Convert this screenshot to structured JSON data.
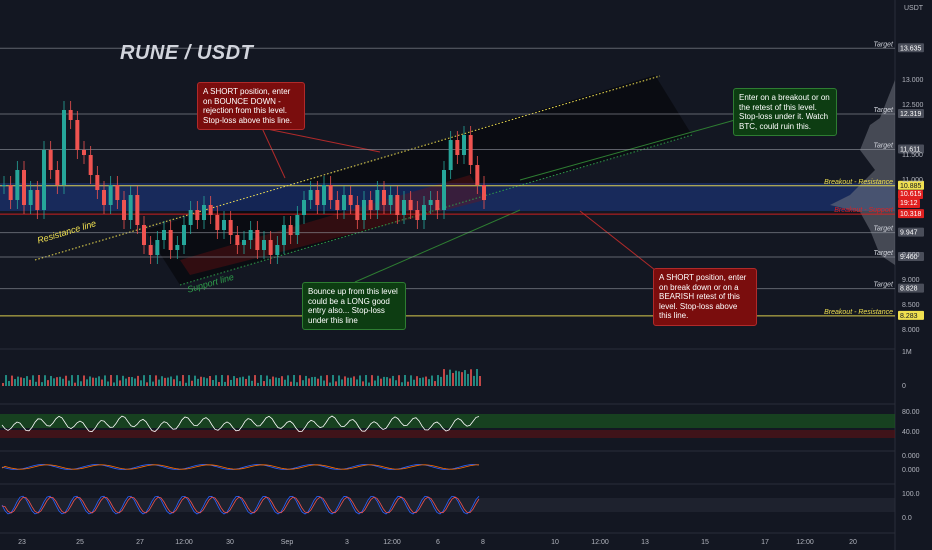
{
  "chart_data": {
    "type": "candlestick",
    "title": "RUNE / USDT",
    "currency": "USDT",
    "y_ticks": [
      "13.000",
      "12.500",
      "11.500",
      "11.000",
      "9.500",
      "9.000",
      "8.500",
      "8.000"
    ],
    "x_ticks": [
      "23",
      "25",
      "27",
      "12:00",
      "30",
      "Sep",
      "3",
      "12:00",
      "6",
      "8",
      "10",
      "12:00",
      "13",
      "15",
      "17",
      "12:00",
      "20"
    ],
    "levels": [
      {
        "label": "Target",
        "value": "13.635",
        "color": "#9598a1",
        "kind": "target"
      },
      {
        "label": "Target",
        "value": "12.319",
        "color": "#9598a1",
        "kind": "target"
      },
      {
        "label": "Target",
        "value": "11.611",
        "color": "#9598a1",
        "kind": "target"
      },
      {
        "label": "Breakout - Resistance",
        "value": "10.885",
        "color": "#f0e050",
        "kind": "breakout"
      },
      {
        "label": "Breakout - Support",
        "value": "10.318",
        "color": "#e02020",
        "kind": "support"
      },
      {
        "label": "Target",
        "value": "9.947",
        "color": "#9598a1",
        "kind": "target"
      },
      {
        "label": "Target",
        "value": "9.460",
        "color": "#9598a1",
        "kind": "target"
      },
      {
        "label": "Target",
        "value": "8.828",
        "color": "#9598a1",
        "kind": "target"
      },
      {
        "label": "Breakout - Resistance",
        "value": "8.283",
        "color": "#f0e050",
        "kind": "breakout"
      }
    ],
    "last_price": "10.615",
    "countdown": "19:12",
    "channel_labels": {
      "resistance": "Resistance line",
      "support": "Support line"
    },
    "volume_ticks": [
      "1M",
      "0"
    ],
    "rsi_ticks": [
      "80.00",
      "40.00"
    ],
    "macd_ticks": [
      "0.000",
      "0.000"
    ],
    "stoch_ticks": [
      "100.0",
      "0.0"
    ],
    "price_min": 7.8,
    "price_max": 14.2,
    "candles": [
      10.9,
      10.6,
      11.2,
      10.5,
      10.8,
      10.4,
      11.6,
      11.2,
      10.9,
      12.4,
      12.2,
      11.6,
      11.5,
      11.1,
      10.8,
      10.5,
      10.9,
      10.6,
      10.2,
      10.7,
      10.1,
      9.7,
      9.5,
      9.8,
      10.0,
      9.6,
      9.7,
      10.1,
      10.4,
      10.2,
      10.5,
      10.3,
      10.0,
      10.2,
      9.9,
      9.7,
      9.8,
      10.0,
      9.6,
      9.8,
      9.5,
      9.7,
      10.1,
      9.9,
      10.3,
      10.6,
      10.8,
      10.5,
      10.9,
      10.6,
      10.4,
      10.7,
      10.5,
      10.2,
      10.6,
      10.4,
      10.8,
      10.5,
      10.7,
      10.3,
      10.6,
      10.4,
      10.2,
      10.5,
      10.6,
      10.4,
      11.2,
      11.8,
      11.5,
      11.9,
      11.3,
      10.9,
      10.6
    ]
  },
  "callouts": [
    {
      "text": "A SHORT position, enter on BOUNCE DOWN - rejection from this level. Stop-loss above this line.",
      "color": "red"
    },
    {
      "text": "Enter on a breakout or on the retest of this level. Stop-loss under it. Watch BTC, could ruin this.",
      "color": "green"
    },
    {
      "text": "Bounce up from this level could be a LONG good entry also... Stop-loss under this line",
      "color": "green"
    },
    {
      "text": "A SHORT position, enter on break down or on a BEARISH retest of this level. Stop-loss above this line.",
      "color": "red"
    }
  ]
}
